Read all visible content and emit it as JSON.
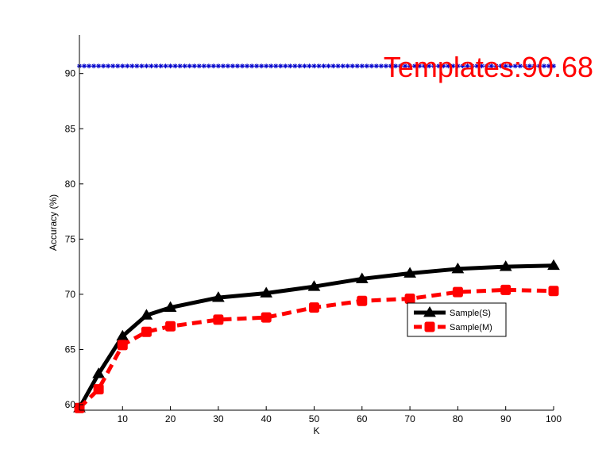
{
  "chart_data": {
    "type": "line",
    "xlabel": "K",
    "ylabel": "Accuracy (%)",
    "ylim": [
      59.5,
      93.5
    ],
    "xlim": [
      1,
      100
    ],
    "x_ticks": [
      10,
      20,
      30,
      40,
      50,
      60,
      70,
      80,
      90,
      100
    ],
    "y_ticks": [
      60,
      65,
      70,
      75,
      80,
      85,
      90
    ],
    "grid": false,
    "legend_position": "lower-right",
    "annotation": "Templates:90.68",
    "x": [
      1,
      5,
      10,
      15,
      20,
      30,
      40,
      50,
      60,
      70,
      80,
      90,
      100
    ],
    "series": [
      {
        "name": "Sample(S)",
        "color": "#000000",
        "style": "solid",
        "marker": "triangle",
        "values": [
          59.7,
          62.8,
          66.2,
          68.1,
          68.8,
          69.7,
          70.1,
          70.7,
          71.4,
          71.9,
          72.3,
          72.5,
          72.6
        ]
      },
      {
        "name": "Sample(M)",
        "color": "#ff0000",
        "style": "dashed",
        "marker": "square",
        "values": [
          59.7,
          61.4,
          65.4,
          66.6,
          67.1,
          67.7,
          67.9,
          68.8,
          69.4,
          69.6,
          70.2,
          70.4,
          70.3
        ]
      }
    ],
    "reference_line": {
      "value": 90.68,
      "color": "#0000cc",
      "marker": "asterisk"
    }
  }
}
